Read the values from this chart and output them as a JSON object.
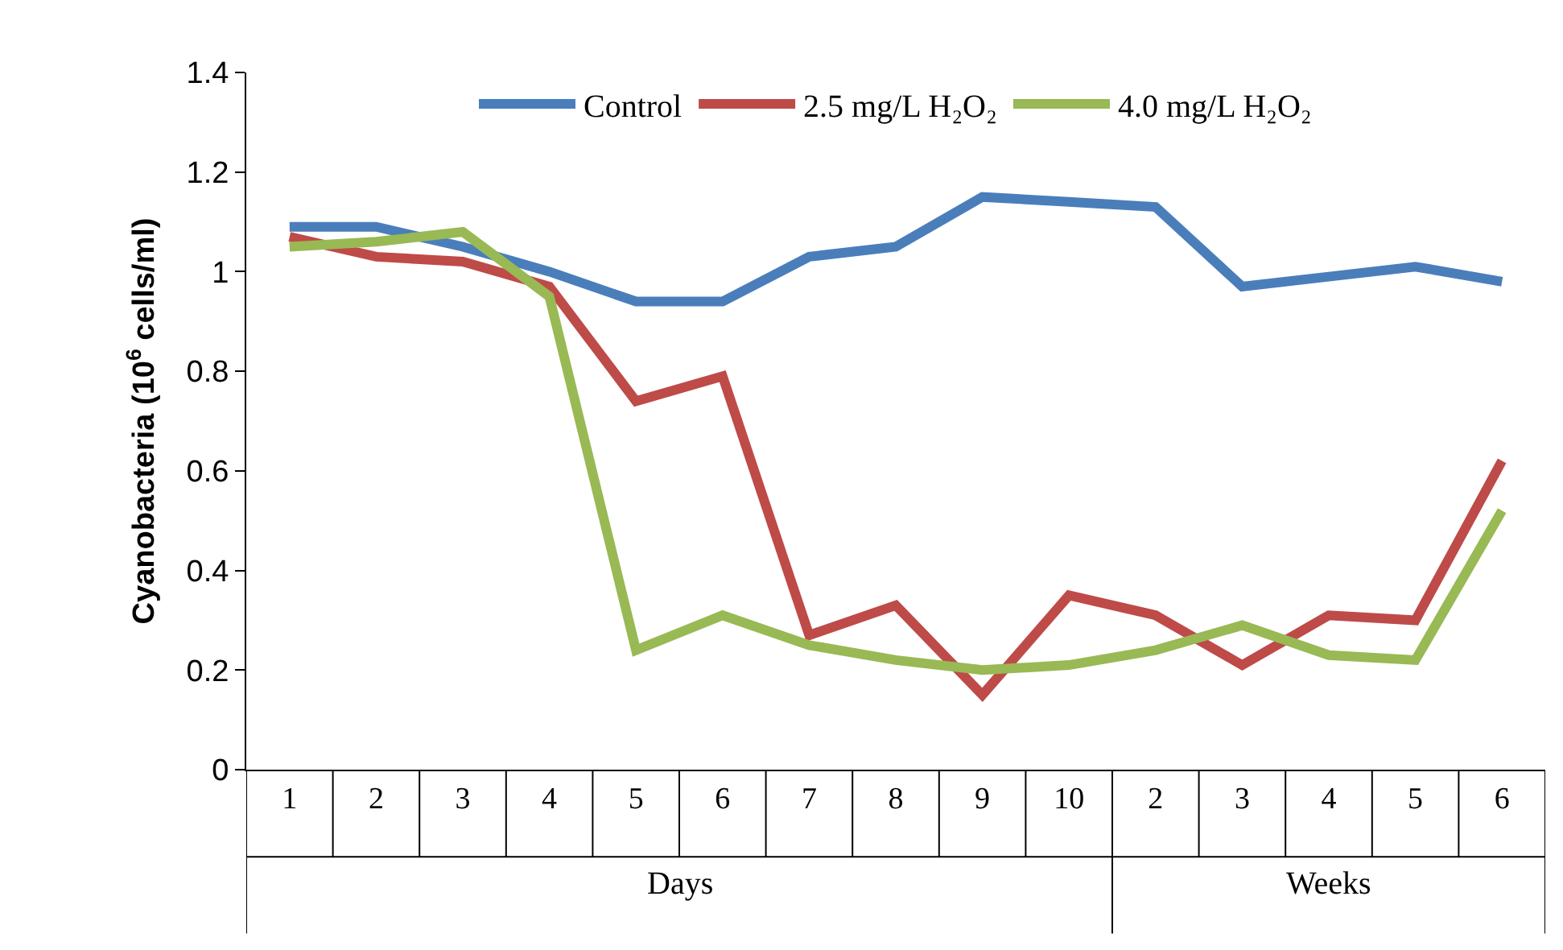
{
  "chart_data": {
    "type": "line",
    "ylabel": "Cyanobacteria (10$^{6}$ cells/ml)",
    "categories": [
      "1",
      "2",
      "3",
      "4",
      "5",
      "6",
      "7",
      "8",
      "9",
      "10",
      "2",
      "3",
      "4",
      "5",
      "6"
    ],
    "annotations": [
      "Days",
      "Weeks"
    ],
    "series": [
      {
        "name": "Control",
        "color": "#4a7ebb",
        "values": [
          1.09,
          1.09,
          1.05,
          1.0,
          0.94,
          0.94,
          1.03,
          1.05,
          1.15,
          1.14,
          1.13,
          0.97,
          0.99,
          1.01,
          0.98
        ]
      },
      {
        "name": "2.5 mg/L H₂O₂",
        "color": "#be4b48",
        "values": [
          1.07,
          1.03,
          1.02,
          0.97,
          0.74,
          0.79,
          0.27,
          0.33,
          0.15,
          0.35,
          0.31,
          0.21,
          0.31,
          0.3,
          0.62
        ]
      },
      {
        "name": "4.0 mg/L H₂O₂",
        "color": "#98b954",
        "values": [
          1.05,
          1.06,
          1.08,
          0.95,
          0.24,
          0.31,
          0.25,
          0.22,
          0.2,
          0.21,
          0.24,
          0.29,
          0.23,
          0.22,
          0.52
        ]
      }
    ],
    "ylim": [
      0,
      1.4
    ],
    "yticks": [
      0,
      0.2,
      0.4,
      0.6,
      0.8,
      1,
      1.2,
      1.4
    ],
    "grid": false,
    "legend": "top",
    "marker": "none",
    "line_style": "solid"
  }
}
